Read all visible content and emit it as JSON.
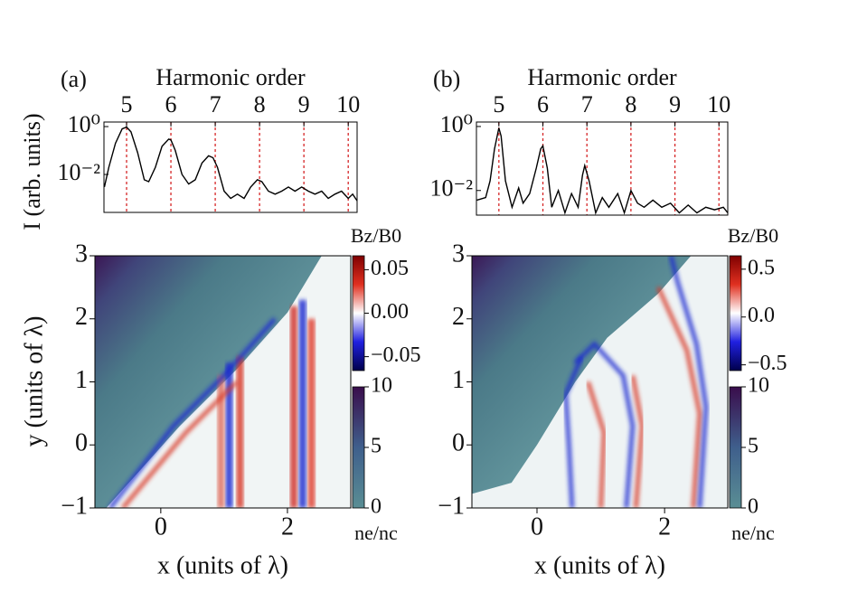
{
  "chart_data": [
    {
      "type": "line",
      "panel_label": "(a)",
      "xlabel": "Harmonic order",
      "ylabel": "I (arb. units)",
      "x": [
        4.5,
        4.6,
        4.75,
        4.9,
        5.0,
        5.1,
        5.25,
        5.4,
        5.5,
        5.65,
        5.8,
        5.95,
        6.0,
        6.1,
        6.25,
        6.4,
        6.55,
        6.7,
        6.85,
        6.95,
        7.05,
        7.2,
        7.35,
        7.5,
        7.65,
        7.8,
        7.95,
        8.05,
        8.2,
        8.35,
        8.5,
        8.65,
        8.8,
        8.95,
        9.1,
        9.25,
        9.4,
        9.55,
        9.7,
        9.85,
        10.0,
        10.1,
        10.2
      ],
      "series": [
        {
          "color": "#000000",
          "values": [
            0.003,
            0.02,
            0.2,
            0.8,
            0.95,
            0.6,
            0.08,
            0.006,
            0.005,
            0.02,
            0.15,
            0.3,
            0.28,
            0.1,
            0.01,
            0.004,
            0.006,
            0.03,
            0.06,
            0.05,
            0.02,
            0.002,
            0.001,
            0.0015,
            0.001,
            0.003,
            0.006,
            0.005,
            0.002,
            0.0015,
            0.002,
            0.003,
            0.002,
            0.003,
            0.002,
            0.0015,
            0.002,
            0.001,
            0.0015,
            0.002,
            0.001,
            0.0015,
            0.0008
          ]
        }
      ],
      "xlim": [
        4.49,
        10.2
      ],
      "ylim": [
        0.00026,
        1.55
      ],
      "log_y": true,
      "xticks": [
        5,
        6,
        7,
        8,
        9,
        10
      ],
      "yticks": [
        {
          "value": 1,
          "label": "10⁰"
        },
        {
          "value": 0.01,
          "label": "10⁻²"
        }
      ],
      "vline_color": "#d62728"
    },
    {
      "type": "line",
      "panel_label": "(b)",
      "xlabel": "Harmonic order",
      "x": [
        4.5,
        4.7,
        4.8,
        4.9,
        5.0,
        5.05,
        5.15,
        5.3,
        5.45,
        5.55,
        5.7,
        5.85,
        5.95,
        6.0,
        6.1,
        6.2,
        6.35,
        6.5,
        6.65,
        6.8,
        6.9,
        6.95,
        7.05,
        7.2,
        7.35,
        7.5,
        7.7,
        7.85,
        8.0,
        8.15,
        8.3,
        8.5,
        8.7,
        8.9,
        9.1,
        9.3,
        9.5,
        9.7,
        9.9,
        10.1,
        10.2
      ],
      "series": [
        {
          "color": "#000000",
          "values": [
            0.005,
            0.006,
            0.02,
            0.2,
            0.9,
            0.5,
            0.02,
            0.003,
            0.012,
            0.004,
            0.008,
            0.05,
            0.2,
            0.25,
            0.05,
            0.003,
            0.01,
            0.002,
            0.008,
            0.003,
            0.03,
            0.06,
            0.02,
            0.002,
            0.006,
            0.003,
            0.008,
            0.002,
            0.01,
            0.004,
            0.003,
            0.005,
            0.003,
            0.004,
            0.002,
            0.0035,
            0.002,
            0.003,
            0.0025,
            0.003,
            0.002
          ]
        }
      ],
      "xlim": [
        4.49,
        10.2
      ],
      "ylim": [
        0.0017,
        1.38
      ],
      "log_y": true,
      "xticks": [
        5,
        6,
        7,
        8,
        9,
        10
      ],
      "yticks": [
        {
          "value": 1,
          "label": "10⁰"
        },
        {
          "value": 0.01,
          "label": "10⁻²"
        }
      ],
      "vline_color": "#d62728"
    },
    {
      "type": "heatmap",
      "xlabel": "x (units of λ)",
      "ylabel": "y (units of λ)",
      "xlim": [
        -1.04,
        3
      ],
      "ylim": [
        -1,
        3
      ],
      "xticks": [
        0,
        2
      ],
      "yticks": [
        {
          "value": -1,
          "label": "−1"
        },
        0,
        1,
        2,
        3
      ],
      "colorbars": [
        {
          "label": "Bz/B0",
          "lim": [
            -0.066,
            0.066
          ],
          "ticks": [
            {
              "value": -0.05,
              "label": "−0.05"
            },
            {
              "value": 0,
              "label": "0.00"
            },
            {
              "value": 0.05,
              "label": "0.05"
            }
          ]
        },
        {
          "label": "ne/nc",
          "lim": [
            0,
            10
          ],
          "ticks": [
            0,
            5,
            10
          ]
        }
      ]
    },
    {
      "type": "heatmap",
      "xlabel": "x (units of λ)",
      "xlim": [
        -1.02,
        2.99
      ],
      "ylim": [
        -1,
        3
      ],
      "xticks": [
        0,
        2
      ],
      "yticks": [
        {
          "value": -1,
          "label": "−1"
        },
        0,
        1,
        2,
        3
      ],
      "colorbars": [
        {
          "label": "Bz/B0",
          "lim": [
            -0.56,
            0.64
          ],
          "ticks": [
            {
              "value": -0.5,
              "label": "−0.5"
            },
            {
              "value": 0,
              "label": "0.0"
            },
            {
              "value": 0.5,
              "label": "0.5"
            }
          ]
        },
        {
          "label": "ne/nc",
          "lim": [
            0,
            10
          ],
          "ticks": [
            0,
            5,
            10
          ]
        }
      ]
    }
  ]
}
